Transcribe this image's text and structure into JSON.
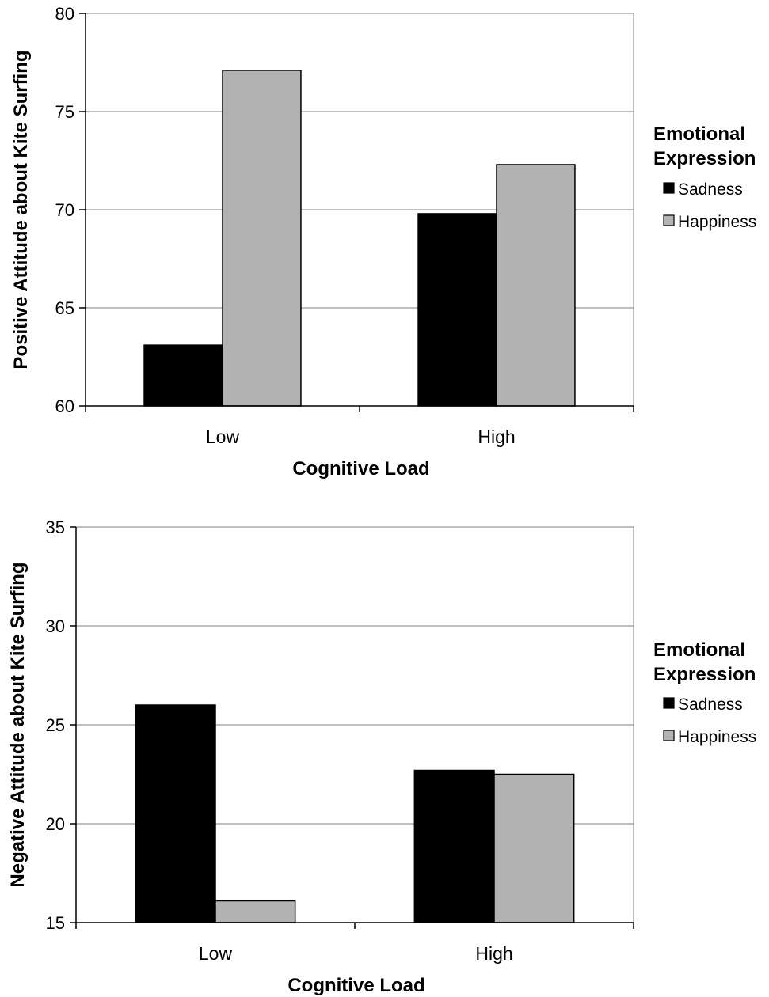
{
  "chart_data": [
    {
      "type": "bar",
      "categories": [
        "Low",
        "High"
      ],
      "series": [
        {
          "name": "Sadness",
          "values": [
            63.1,
            69.8
          ]
        },
        {
          "name": "Happiness",
          "values": [
            77.1,
            72.3
          ]
        }
      ],
      "xlabel": "Cognitive Load",
      "ylabel": "Positive Attitude about Kite Surfing",
      "ylim": [
        60,
        80
      ],
      "yticks": [
        60,
        65,
        70,
        75,
        80
      ],
      "grid": true,
      "legend_title": [
        "Emotional",
        "Expression"
      ],
      "legend_position": "right",
      "colors": [
        "#000000",
        "#b2b2b2"
      ]
    },
    {
      "type": "bar",
      "categories": [
        "Low",
        "High"
      ],
      "series": [
        {
          "name": "Sadness",
          "values": [
            26.0,
            22.7
          ]
        },
        {
          "name": "Happiness",
          "values": [
            16.1,
            22.5
          ]
        }
      ],
      "xlabel": "Cognitive Load",
      "ylabel": "Negative Attitude about Kite Surfing",
      "ylim": [
        15,
        35
      ],
      "yticks": [
        15,
        20,
        25,
        30,
        35
      ],
      "grid": true,
      "legend_title": [
        "Emotional",
        "Expression"
      ],
      "legend_position": "right",
      "colors": [
        "#000000",
        "#b2b2b2"
      ]
    }
  ]
}
